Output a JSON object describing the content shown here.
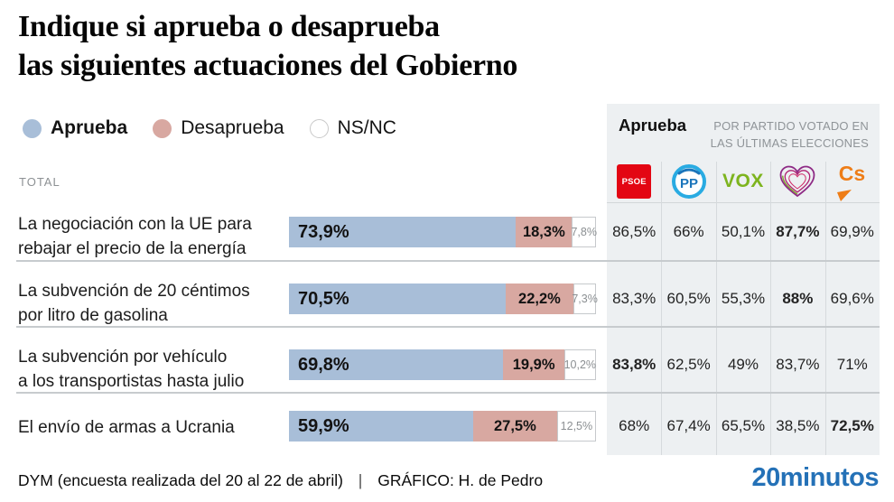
{
  "title": {
    "line1": "Indique si aprueba o desaprueba",
    "line2": "las siguientes actuaciones del Gobierno"
  },
  "legend": {
    "items": [
      {
        "label": "Aprueba",
        "color": "#a8bed8"
      },
      {
        "label": "Desaprueba",
        "color": "#d8a8a1"
      },
      {
        "label": "NS/NC",
        "color": "#ffffff"
      }
    ]
  },
  "total_label": "TOTAL",
  "panel": {
    "title": "Aprueba",
    "subtitle_line1": "POR PARTIDO VOTADO EN",
    "subtitle_line2": "LAS ÚLTIMAS ELECCIONES",
    "logo_texts": {
      "psoe": "PSOE",
      "pp": "PP",
      "vox": "VOX",
      "cs": "Cs"
    }
  },
  "chart_data": {
    "type": "bar",
    "orientation": "horizontal",
    "stacked": true,
    "unit": "%",
    "series_names": [
      "Aprueba",
      "Desaprueba",
      "NS/NC"
    ],
    "colors": {
      "aprueba": "#a8bed8",
      "desaprueba": "#d8a8a1",
      "nsnc": "#ffffff"
    },
    "party_columns": [
      "PSOE",
      "PP",
      "VOX",
      "Podemos",
      "Ciudadanos"
    ],
    "xlim": [
      0,
      100
    ],
    "rows": [
      {
        "label_line1": "La negociación con la UE para",
        "label_line2": "rebajar el precio de la energía",
        "values": {
          "aprueba": 73.9,
          "desaprueba": 18.3,
          "nsnc": 7.8
        },
        "value_labels": {
          "aprueba": "73,9%",
          "desaprueba": "18,3%",
          "nsnc": "7,8%"
        },
        "party_values": [
          "86,5%",
          "66%",
          "50,1%",
          "87,7%",
          "69,9%"
        ],
        "bold_party_index": 3
      },
      {
        "label_line1": "La subvención de 20 céntimos",
        "label_line2": "por litro de gasolina",
        "values": {
          "aprueba": 70.5,
          "desaprueba": 22.2,
          "nsnc": 7.3
        },
        "value_labels": {
          "aprueba": "70,5%",
          "desaprueba": "22,2%",
          "nsnc": "7,3%"
        },
        "party_values": [
          "83,3%",
          "60,5%",
          "55,3%",
          "88%",
          "69,6%"
        ],
        "bold_party_index": 3
      },
      {
        "label_line1": "La subvención por vehículo",
        "label_line2": "a los transportistas hasta julio",
        "values": {
          "aprueba": 69.8,
          "desaprueba": 19.9,
          "nsnc": 10.2
        },
        "value_labels": {
          "aprueba": "69,8%",
          "desaprueba": "19,9%",
          "nsnc": "10,2%"
        },
        "party_values": [
          "83,8%",
          "62,5%",
          "49%",
          "83,7%",
          "71%"
        ],
        "bold_party_index": 0
      },
      {
        "label_line1": "El envío de armas a Ucrania",
        "label_line2": "",
        "values": {
          "aprueba": 59.9,
          "desaprueba": 27.5,
          "nsnc": 12.5
        },
        "value_labels": {
          "aprueba": "59,9%",
          "desaprueba": "27,5%",
          "nsnc": "12,5%"
        },
        "party_values": [
          "68%",
          "67,4%",
          "65,5%",
          "38,5%",
          "72,5%"
        ],
        "bold_party_index": 4
      }
    ]
  },
  "footer": {
    "source": "DYM (encuesta realizada del 20 al 22 de abril)",
    "separator": "|",
    "credit": "GRÁFICO: H. de Pedro",
    "brand": "20minutos"
  }
}
